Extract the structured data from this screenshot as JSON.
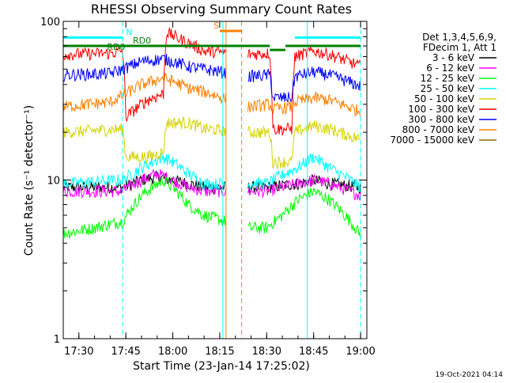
{
  "chart_data": {
    "type": "line",
    "title": "RHESSI Observing Summary Count Rates",
    "xlabel": "Start Time (23-Jan-14 17:25:02)",
    "ylabel": "Count Rate (s⁻¹ detector⁻¹)",
    "y_scale": "log",
    "ylim": [
      1,
      100
    ],
    "y_ticks": [
      {
        "value": 1,
        "label": "1"
      },
      {
        "value": 10,
        "label": "10"
      },
      {
        "value": 100,
        "label": "100"
      }
    ],
    "xlim": [
      "17:25",
      "19:02"
    ],
    "x_ticks": [
      "17:30",
      "17:45",
      "18:00",
      "18:15",
      "18:30",
      "18:45",
      "19:00"
    ],
    "grid": false,
    "footer_date": "19-Oct-2021 04:14",
    "legend": {
      "placement": "right",
      "header": [
        "Det 1,3,4,5,6,9,",
        "FDecim 1, Att 1"
      ],
      "entries": [
        {
          "label": "3 - 6 keV",
          "color": "#000000"
        },
        {
          "label": "6 - 12 keV",
          "color": "#ff00ff"
        },
        {
          "label": "12 - 25 keV",
          "color": "#00ff00"
        },
        {
          "label": "25 - 50 keV",
          "color": "#00ffff"
        },
        {
          "label": "50 - 100 keV",
          "color": "#d4d400"
        },
        {
          "label": "100 - 300 keV",
          "color": "#ff0000"
        },
        {
          "label": "300 - 800 keV",
          "color": "#0000ff"
        },
        {
          "label": "800 - 7000 keV",
          "color": "#ff8000"
        },
        {
          "label": "7000 - 15000 keV",
          "color": "#8b6b00"
        }
      ]
    },
    "segments": [
      [
        "17:25",
        "18:17"
      ],
      [
        "18:24",
        "19:00"
      ]
    ],
    "series": [
      {
        "name": "3 - 6 keV",
        "color": "#000000",
        "points": [
          [
            "17:25",
            9
          ],
          [
            "17:44",
            9
          ],
          [
            "17:50",
            10
          ],
          [
            "17:55",
            10.5
          ],
          [
            "18:00",
            10
          ],
          [
            "18:05",
            9.5
          ],
          [
            "18:10",
            9
          ],
          [
            "18:24",
            9
          ],
          [
            "18:30",
            9
          ],
          [
            "18:40",
            9.5
          ],
          [
            "18:45",
            10
          ],
          [
            "18:50",
            9.5
          ],
          [
            "19:00",
            9
          ]
        ]
      },
      {
        "name": "6 - 12 keV",
        "color": "#ff00ff",
        "points": [
          [
            "17:25",
            8.5
          ],
          [
            "17:44",
            8.5
          ],
          [
            "17:50",
            10
          ],
          [
            "17:55",
            11
          ],
          [
            "18:00",
            10
          ],
          [
            "18:05",
            9
          ],
          [
            "18:10",
            8.5
          ],
          [
            "18:24",
            8.5
          ],
          [
            "18:30",
            8.5
          ],
          [
            "18:40",
            9.5
          ],
          [
            "18:45",
            10
          ],
          [
            "18:50",
            9.5
          ],
          [
            "19:00",
            8
          ]
        ]
      },
      {
        "name": "12 - 25 keV",
        "color": "#00ff00",
        "points": [
          [
            "17:25",
            4.6
          ],
          [
            "17:35",
            5
          ],
          [
            "17:44",
            5.5
          ],
          [
            "17:50",
            8
          ],
          [
            "17:57",
            10
          ],
          [
            "18:00",
            9
          ],
          [
            "18:05",
            7
          ],
          [
            "18:10",
            6
          ],
          [
            "18:24",
            5
          ],
          [
            "18:30",
            5
          ],
          [
            "18:35",
            6
          ],
          [
            "18:40",
            7.5
          ],
          [
            "18:45",
            8.5
          ],
          [
            "18:50",
            7.5
          ],
          [
            "18:55",
            6
          ],
          [
            "19:00",
            4.5
          ]
        ]
      },
      {
        "name": "25 - 50 keV",
        "color": "#00ffff",
        "points": [
          [
            "17:25",
            9.5
          ],
          [
            "17:44",
            10
          ],
          [
            "17:50",
            12
          ],
          [
            "17:57",
            14
          ],
          [
            "18:00",
            13
          ],
          [
            "18:05",
            11
          ],
          [
            "18:10",
            9.5
          ],
          [
            "18:24",
            9.5
          ],
          [
            "18:30",
            9.5
          ],
          [
            "18:40",
            12
          ],
          [
            "18:45",
            14
          ],
          [
            "18:50",
            12
          ],
          [
            "19:00",
            9
          ]
        ]
      },
      {
        "name": "50 - 100 keV",
        "color": "#d4d400",
        "points": [
          [
            "17:25",
            20
          ],
          [
            "17:44",
            21
          ],
          [
            "17:45",
            14
          ],
          [
            "17:52",
            14
          ],
          [
            "17:57",
            15
          ],
          [
            "17:58",
            23
          ],
          [
            "18:05",
            23
          ],
          [
            "18:10",
            21
          ],
          [
            "18:24",
            20
          ],
          [
            "18:31",
            20
          ],
          [
            "18:32",
            13
          ],
          [
            "18:38",
            13
          ],
          [
            "18:39",
            20
          ],
          [
            "18:45",
            22
          ],
          [
            "18:50",
            21
          ],
          [
            "19:00",
            18
          ]
        ]
      },
      {
        "name": "100 - 300 keV",
        "color": "#ff0000",
        "points": [
          [
            "17:25",
            62
          ],
          [
            "17:40",
            63
          ],
          [
            "17:44",
            65
          ],
          [
            "17:45",
            25
          ],
          [
            "17:52",
            32
          ],
          [
            "17:57",
            35
          ],
          [
            "17:58",
            85
          ],
          [
            "18:02",
            78
          ],
          [
            "18:10",
            65
          ],
          [
            "18:24",
            62
          ],
          [
            "18:31",
            63
          ],
          [
            "18:32",
            21
          ],
          [
            "18:38",
            21
          ],
          [
            "18:39",
            60
          ],
          [
            "18:45",
            65
          ],
          [
            "18:50",
            62
          ],
          [
            "19:00",
            52
          ]
        ]
      },
      {
        "name": "300 - 800 keV",
        "color": "#0000ff",
        "points": [
          [
            "17:25",
            46
          ],
          [
            "17:40",
            47
          ],
          [
            "17:44",
            50
          ],
          [
            "17:50",
            56
          ],
          [
            "17:57",
            58
          ],
          [
            "18:00",
            56
          ],
          [
            "18:05",
            52
          ],
          [
            "18:10",
            50
          ],
          [
            "18:24",
            45
          ],
          [
            "18:31",
            46
          ],
          [
            "18:32",
            33
          ],
          [
            "18:38",
            33
          ],
          [
            "18:39",
            45
          ],
          [
            "18:45",
            48
          ],
          [
            "18:50",
            46
          ],
          [
            "19:00",
            39
          ]
        ]
      },
      {
        "name": "800 - 7000 keV",
        "color": "#ff8000",
        "points": [
          [
            "17:25",
            29
          ],
          [
            "17:40",
            31
          ],
          [
            "17:44",
            34
          ],
          [
            "17:50",
            40
          ],
          [
            "17:57",
            44
          ],
          [
            "18:00",
            42
          ],
          [
            "18:05",
            38
          ],
          [
            "18:10",
            36
          ],
          [
            "18:24",
            29
          ],
          [
            "18:31",
            30
          ],
          [
            "18:32",
            28
          ],
          [
            "18:38",
            29
          ],
          [
            "18:39",
            31
          ],
          [
            "18:45",
            33
          ],
          [
            "18:50",
            32
          ],
          [
            "19:00",
            27
          ]
        ]
      }
    ],
    "annotations": {
      "top_bars": [
        {
          "color": "#00ffff",
          "from": "17:25",
          "to": "17:44",
          "level": 79,
          "label": "N"
        },
        {
          "color": "#00ffff",
          "from": "18:39",
          "to": "19:00",
          "level": 79,
          "label": ""
        },
        {
          "color": "#008000",
          "from": "17:25",
          "to": "18:31",
          "level": 70,
          "label": "RD0"
        },
        {
          "color": "#008000",
          "from": "18:31",
          "to": "18:36",
          "level": 66,
          "label": ""
        },
        {
          "color": "#008000",
          "from": "18:36",
          "to": "19:00",
          "level": 70,
          "label": ""
        },
        {
          "color": "#ff8000",
          "from": "18:15",
          "to": "18:22",
          "level": 87,
          "label": "S"
        }
      ],
      "rdo_label": {
        "text": "RD0",
        "time": "17:40",
        "level": 66,
        "color": "#008000"
      },
      "vlines": [
        {
          "time": "17:44",
          "color": "#00ffff",
          "dash": true
        },
        {
          "time": "18:16",
          "color": "#00ffff",
          "dash": false
        },
        {
          "time": "18:17",
          "color": "#ff8000",
          "dash": false
        },
        {
          "time": "18:22",
          "color": "#ff8000",
          "dash": true
        },
        {
          "time": "18:43",
          "color": "#00ffff",
          "dash": false
        },
        {
          "time": "19:00",
          "color": "#00ffff",
          "dash": true
        }
      ]
    }
  }
}
